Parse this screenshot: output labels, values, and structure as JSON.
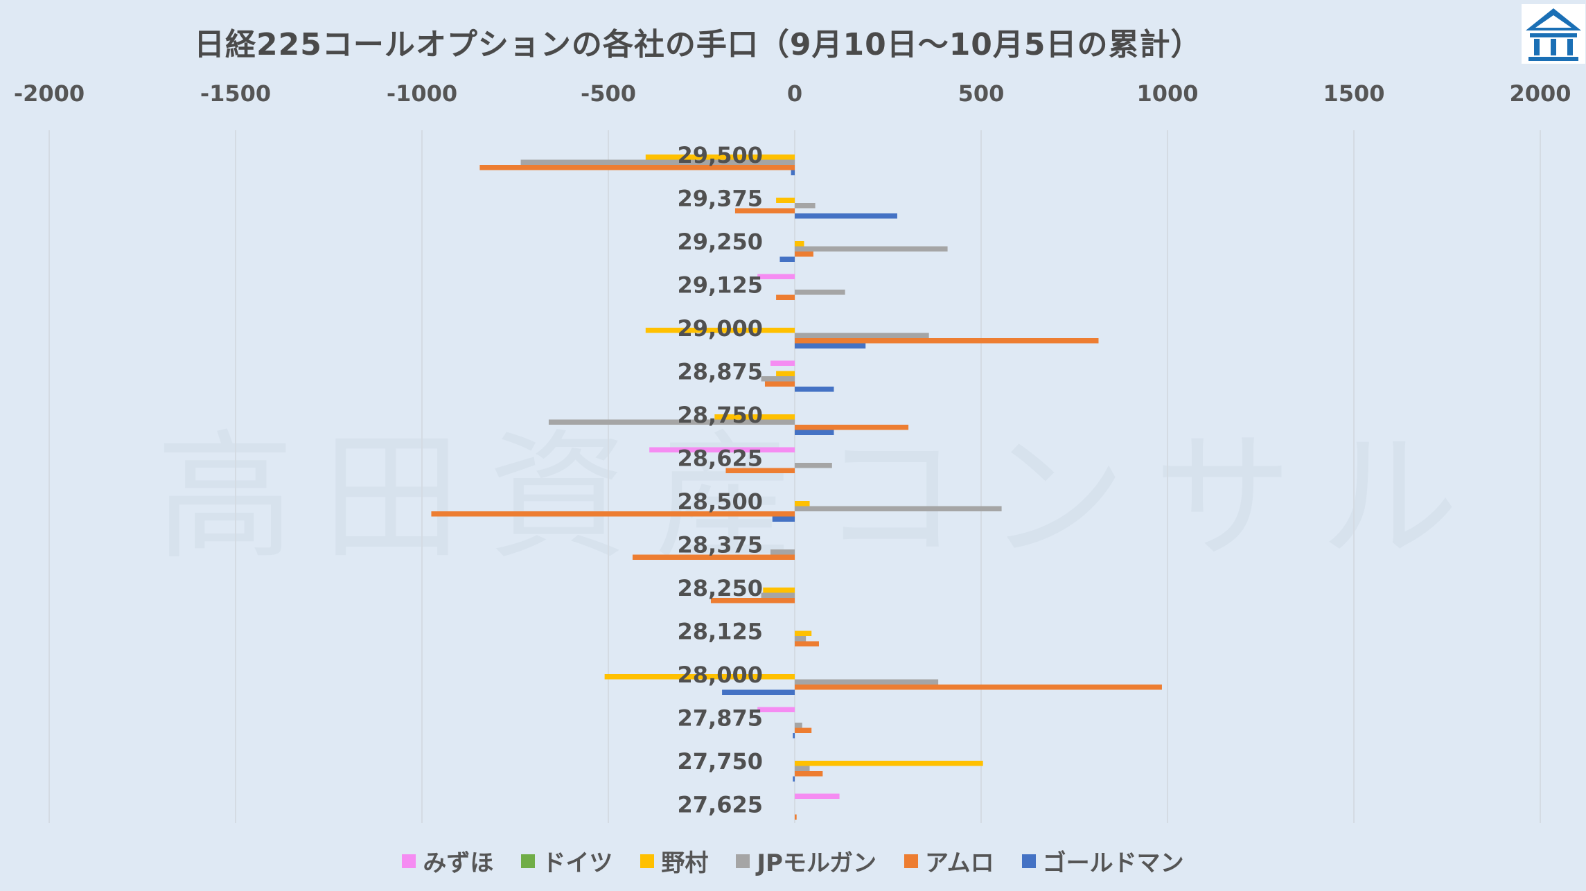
{
  "chart_data": {
    "type": "bar",
    "orientation": "horizontal",
    "title": "日経225コールオプションの各社の手口（9月10日〜10月5日の累計）",
    "watermark": "高田資産コンサル",
    "xlim": [
      -2000,
      2000
    ],
    "xticks": [
      "-2000",
      "-1500",
      "-1000",
      "-500",
      "0",
      "500",
      "1000",
      "1500",
      "2000"
    ],
    "xtick_values": [
      -2000,
      -1500,
      -1000,
      -500,
      0,
      500,
      1000,
      1500,
      2000
    ],
    "grid": "vertical",
    "legend_position": "bottom",
    "categories": [
      "29,500",
      "29,375",
      "29,250",
      "29,125",
      "29,000",
      "28,875",
      "28,750",
      "28,625",
      "28,500",
      "28,375",
      "28,250",
      "28,125",
      "28,000",
      "27,875",
      "27,750",
      "27,625"
    ],
    "series": [
      {
        "name": "みずほ",
        "color": "#f58cf2",
        "values": [
          0,
          0,
          0,
          -100,
          0,
          -65,
          0,
          -390,
          0,
          0,
          0,
          0,
          0,
          -100,
          0,
          120
        ]
      },
      {
        "name": "ドイツ",
        "color": "#70ad47",
        "values": [
          0,
          0,
          0,
          0,
          0,
          0,
          0,
          0,
          0,
          0,
          0,
          0,
          0,
          0,
          0,
          0
        ]
      },
      {
        "name": "野村",
        "color": "#ffc000",
        "values": [
          -400,
          -50,
          25,
          0,
          -400,
          -50,
          -215,
          0,
          40,
          0,
          -85,
          45,
          -510,
          0,
          505,
          0
        ]
      },
      {
        "name": "JPモルガン",
        "color": "#a5a5a5",
        "values": [
          -735,
          55,
          410,
          135,
          360,
          -90,
          -660,
          100,
          555,
          -65,
          -90,
          30,
          385,
          20,
          40,
          0
        ]
      },
      {
        "name": "アムロ",
        "color": "#ed7d31",
        "values": [
          -845,
          -160,
          50,
          -50,
          815,
          -80,
          305,
          -185,
          -975,
          -435,
          -225,
          65,
          985,
          45,
          75,
          5
        ]
      },
      {
        "name": "ゴールドマン",
        "color": "#4472c4",
        "values": [
          -10,
          275,
          -40,
          0,
          190,
          105,
          105,
          0,
          -60,
          0,
          0,
          0,
          -195,
          -5,
          -5,
          0
        ]
      }
    ]
  }
}
